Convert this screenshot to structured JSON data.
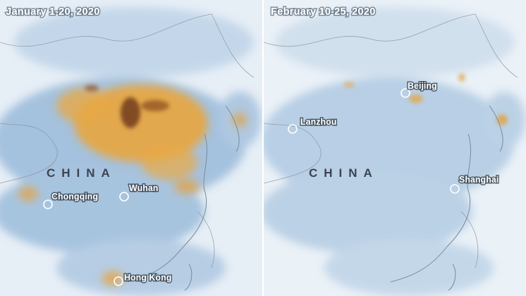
{
  "panels": [
    {
      "title": "January 1-20, 2020",
      "country_label": "CHINA",
      "cities": [
        "Chongqing",
        "Wuhan",
        "Hong Kong"
      ]
    },
    {
      "title": "February 10-25, 2020",
      "country_label": "CHINA",
      "cities": [
        "Lanzhou",
        "Beijing",
        "Shanghai"
      ]
    }
  ]
}
